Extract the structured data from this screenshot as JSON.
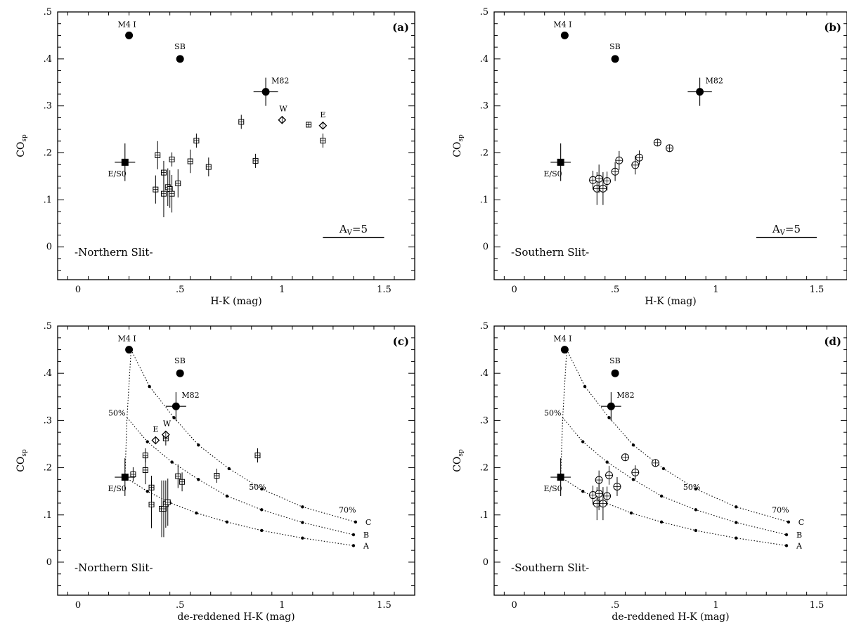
{
  "colors": {
    "ink": "#000000",
    "background": "#ffffff"
  },
  "panel_shared": {
    "ylim": [
      -0.07,
      0.5
    ],
    "y_ticks": [
      0,
      0.1,
      0.2,
      0.3,
      0.4,
      0.5
    ],
    "y_tick_labels": [
      "0",
      ".1",
      ".2",
      ".3",
      ".4",
      ".5"
    ],
    "ylabel_main": "CO",
    "ylabel_sub": "sp",
    "x_ticks": [
      0,
      0.5,
      1,
      1.5
    ],
    "x_tick_labels": [
      "0",
      ".5",
      "1",
      "1.5"
    ]
  },
  "chart_data": [
    {
      "type": "scatter",
      "panel_tag": "(a)",
      "region_label": "-Northern Slit-",
      "xlabel": "H-K (mag)",
      "xlim": [
        -0.1,
        1.65
      ],
      "av_label": "A",
      "av_sub": "V",
      "av_value": "=5",
      "av_bar": [
        1.2,
        1.5,
        0.02
      ],
      "references": [
        {
          "label": "M4 I",
          "x": 0.25,
          "y": 0.45,
          "marker": "circle"
        },
        {
          "label": "SB",
          "x": 0.5,
          "y": 0.4,
          "marker": "circle"
        },
        {
          "label": "M82",
          "x": 0.92,
          "y": 0.33,
          "marker": "circle",
          "xerr": 0.06,
          "yerr": 0.03
        },
        {
          "label": "E/S0",
          "x": 0.23,
          "y": 0.18,
          "marker": "square",
          "xerr": 0.05,
          "yerr": 0.04
        },
        {
          "label": "W",
          "x": 1.0,
          "y": 0.27,
          "marker": "diamond"
        },
        {
          "label": "E",
          "x": 1.2,
          "y": 0.258,
          "marker": "diamond"
        }
      ],
      "points": [
        {
          "x": 0.39,
          "y": 0.195,
          "yerr": 0.03
        },
        {
          "x": 0.38,
          "y": 0.122,
          "yerr": 0.03
        },
        {
          "x": 0.42,
          "y": 0.158,
          "yerr": 0.025
        },
        {
          "x": 0.42,
          "y": 0.113,
          "yerr": 0.05
        },
        {
          "x": 0.44,
          "y": 0.127,
          "yerr": 0.04
        },
        {
          "x": 0.45,
          "y": 0.123,
          "yerr": 0.04
        },
        {
          "x": 0.46,
          "y": 0.113,
          "yerr": 0.04
        },
        {
          "x": 0.46,
          "y": 0.186,
          "yerr": 0.015
        },
        {
          "x": 0.49,
          "y": 0.135,
          "yerr": 0.03
        },
        {
          "x": 0.55,
          "y": 0.182,
          "yerr": 0.025
        },
        {
          "x": 0.58,
          "y": 0.226,
          "yerr": 0.015
        },
        {
          "x": 0.64,
          "y": 0.17,
          "yerr": 0.02
        },
        {
          "x": 0.8,
          "y": 0.266,
          "yerr": 0.015
        },
        {
          "x": 0.87,
          "y": 0.183,
          "yerr": 0.015
        },
        {
          "x": 1.13,
          "y": 0.26,
          "yerr": 0.0
        },
        {
          "x": 1.2,
          "y": 0.226,
          "yerr": 0.015
        }
      ],
      "point_marker": "boxed-cross"
    },
    {
      "type": "scatter",
      "panel_tag": "(b)",
      "region_label": "-Southern Slit-",
      "xlabel": "H-K (mag)",
      "xlim": [
        -0.1,
        1.65
      ],
      "av_label": "A",
      "av_sub": "V",
      "av_value": "=5",
      "av_bar": [
        1.2,
        1.5,
        0.02
      ],
      "references": [
        {
          "label": "M4 I",
          "x": 0.25,
          "y": 0.45,
          "marker": "circle"
        },
        {
          "label": "SB",
          "x": 0.5,
          "y": 0.4,
          "marker": "circle"
        },
        {
          "label": "M82",
          "x": 0.92,
          "y": 0.33,
          "marker": "circle",
          "xerr": 0.06,
          "yerr": 0.03
        },
        {
          "label": "E/S0",
          "x": 0.23,
          "y": 0.18,
          "marker": "square",
          "xerr": 0.05,
          "yerr": 0.04
        }
      ],
      "points": [
        {
          "x": 0.39,
          "y": 0.142,
          "yerr": 0.02
        },
        {
          "x": 0.41,
          "y": 0.124,
          "yerr": 0.035
        },
        {
          "x": 0.42,
          "y": 0.145,
          "yerr": 0.03
        },
        {
          "x": 0.44,
          "y": 0.124,
          "yerr": 0.035
        },
        {
          "x": 0.46,
          "y": 0.14,
          "yerr": 0.02
        },
        {
          "x": 0.5,
          "y": 0.16,
          "yerr": 0.02
        },
        {
          "x": 0.52,
          "y": 0.184,
          "yerr": 0.02
        },
        {
          "x": 0.6,
          "y": 0.174,
          "yerr": 0.02
        },
        {
          "x": 0.62,
          "y": 0.19,
          "yerr": 0.015
        },
        {
          "x": 0.71,
          "y": 0.222,
          "yerr": 0.0
        },
        {
          "x": 0.77,
          "y": 0.21,
          "yerr": 0.0
        }
      ],
      "point_marker": "open-circle-cross"
    },
    {
      "type": "scatter",
      "panel_tag": "(c)",
      "region_label": "-Northern Slit-",
      "xlabel": "de-reddened H-K (mag)",
      "xlim": [
        -0.1,
        1.65
      ],
      "references": [
        {
          "label": "M4 I",
          "x": 0.25,
          "y": 0.45,
          "marker": "circle"
        },
        {
          "label": "SB",
          "x": 0.5,
          "y": 0.4,
          "marker": "circle"
        },
        {
          "label": "M82",
          "x": 0.48,
          "y": 0.33,
          "marker": "circle",
          "xerr": 0.05,
          "yerr": 0.03
        },
        {
          "label": "E/S0",
          "x": 0.23,
          "y": 0.18,
          "marker": "square",
          "xerr": 0.05,
          "yerr": 0.04
        },
        {
          "label": "W",
          "x": 0.43,
          "y": 0.27,
          "marker": "diamond"
        },
        {
          "label": "E",
          "x": 0.38,
          "y": 0.258,
          "marker": "diamond"
        }
      ],
      "points": [
        {
          "x": 0.27,
          "y": 0.186,
          "yerr": 0.015
        },
        {
          "x": 0.33,
          "y": 0.226,
          "yerr": 0.015
        },
        {
          "x": 0.33,
          "y": 0.195,
          "yerr": 0.03
        },
        {
          "x": 0.36,
          "y": 0.158,
          "yerr": 0.025
        },
        {
          "x": 0.36,
          "y": 0.122,
          "yerr": 0.05
        },
        {
          "x": 0.41,
          "y": 0.113,
          "yerr": 0.06
        },
        {
          "x": 0.42,
          "y": 0.113,
          "yerr": 0.06
        },
        {
          "x": 0.43,
          "y": 0.123,
          "yerr": 0.05
        },
        {
          "x": 0.44,
          "y": 0.127,
          "yerr": 0.05
        },
        {
          "x": 0.43,
          "y": 0.262,
          "yerr": 0.015
        },
        {
          "x": 0.49,
          "y": 0.182,
          "yerr": 0.025
        },
        {
          "x": 0.51,
          "y": 0.17,
          "yerr": 0.02
        },
        {
          "x": 0.68,
          "y": 0.183,
          "yerr": 0.015
        },
        {
          "x": 0.88,
          "y": 0.226,
          "yerr": 0.015
        }
      ],
      "point_marker": "boxed-cross",
      "model_curves": [
        {
          "name": "C",
          "x": [
            0.26,
            0.35,
            0.47,
            0.59,
            0.74,
            0.9,
            1.1,
            1.36
          ],
          "y": [
            0.45,
            0.372,
            0.306,
            0.248,
            0.198,
            0.155,
            0.117,
            0.085
          ]
        },
        {
          "name": "B",
          "x": [
            0.24,
            0.34,
            0.46,
            0.59,
            0.73,
            0.9,
            1.1,
            1.35
          ],
          "y": [
            0.306,
            0.255,
            0.212,
            0.175,
            0.14,
            0.111,
            0.084,
            0.058
          ]
        },
        {
          "name": "A",
          "x": [
            0.23,
            0.34,
            0.45,
            0.58,
            0.73,
            0.9,
            1.1,
            1.35
          ],
          "y": [
            0.18,
            0.15,
            0.126,
            0.104,
            0.085,
            0.067,
            0.051,
            0.035
          ]
        }
      ],
      "mixing_line": {
        "x": [
          0.26,
          0.24,
          0.23
        ],
        "y": [
          0.45,
          0.306,
          0.18
        ]
      },
      "curve_annotations": [
        {
          "label": "50%",
          "x": 0.19,
          "y": 0.31
        },
        {
          "label": "50%",
          "x": 0.88,
          "y": 0.153
        },
        {
          "label": "70%",
          "x": 1.32,
          "y": 0.105
        }
      ]
    },
    {
      "type": "scatter",
      "panel_tag": "(d)",
      "region_label": "-Southern Slit-",
      "xlabel": "de-reddened H-K (mag)",
      "xlim": [
        -0.1,
        1.65
      ],
      "references": [
        {
          "label": "M4 I",
          "x": 0.25,
          "y": 0.45,
          "marker": "circle"
        },
        {
          "label": "SB",
          "x": 0.5,
          "y": 0.4,
          "marker": "circle"
        },
        {
          "label": "M82",
          "x": 0.48,
          "y": 0.33,
          "marker": "circle",
          "xerr": 0.05,
          "yerr": 0.03
        },
        {
          "label": "E/S0",
          "x": 0.23,
          "y": 0.18,
          "marker": "square",
          "xerr": 0.05,
          "yerr": 0.04
        }
      ],
      "points": [
        {
          "x": 0.39,
          "y": 0.142,
          "yerr": 0.02
        },
        {
          "x": 0.41,
          "y": 0.124,
          "yerr": 0.035
        },
        {
          "x": 0.42,
          "y": 0.145,
          "yerr": 0.035
        },
        {
          "x": 0.42,
          "y": 0.174,
          "yerr": 0.02
        },
        {
          "x": 0.44,
          "y": 0.124,
          "yerr": 0.035
        },
        {
          "x": 0.46,
          "y": 0.14,
          "yerr": 0.02
        },
        {
          "x": 0.47,
          "y": 0.184,
          "yerr": 0.02
        },
        {
          "x": 0.51,
          "y": 0.16,
          "yerr": 0.02
        },
        {
          "x": 0.55,
          "y": 0.222,
          "yerr": 0.0
        },
        {
          "x": 0.6,
          "y": 0.19,
          "yerr": 0.015
        },
        {
          "x": 0.7,
          "y": 0.21,
          "yerr": 0.0
        }
      ],
      "point_marker": "open-circle-cross",
      "model_curves": [
        {
          "name": "C",
          "x": [
            0.26,
            0.35,
            0.47,
            0.59,
            0.74,
            0.9,
            1.1,
            1.36
          ],
          "y": [
            0.45,
            0.372,
            0.306,
            0.248,
            0.198,
            0.155,
            0.117,
            0.085
          ]
        },
        {
          "name": "B",
          "x": [
            0.24,
            0.34,
            0.46,
            0.59,
            0.73,
            0.9,
            1.1,
            1.35
          ],
          "y": [
            0.306,
            0.255,
            0.212,
            0.175,
            0.14,
            0.111,
            0.084,
            0.058
          ]
        },
        {
          "name": "A",
          "x": [
            0.23,
            0.34,
            0.45,
            0.58,
            0.73,
            0.9,
            1.1,
            1.35
          ],
          "y": [
            0.18,
            0.15,
            0.126,
            0.104,
            0.085,
            0.067,
            0.051,
            0.035
          ]
        }
      ],
      "mixing_line": {
        "x": [
          0.26,
          0.24,
          0.23
        ],
        "y": [
          0.45,
          0.306,
          0.18
        ]
      },
      "curve_annotations": [
        {
          "label": "50%",
          "x": 0.19,
          "y": 0.31
        },
        {
          "label": "50%",
          "x": 0.88,
          "y": 0.153
        },
        {
          "label": "70%",
          "x": 1.32,
          "y": 0.105
        }
      ]
    }
  ]
}
